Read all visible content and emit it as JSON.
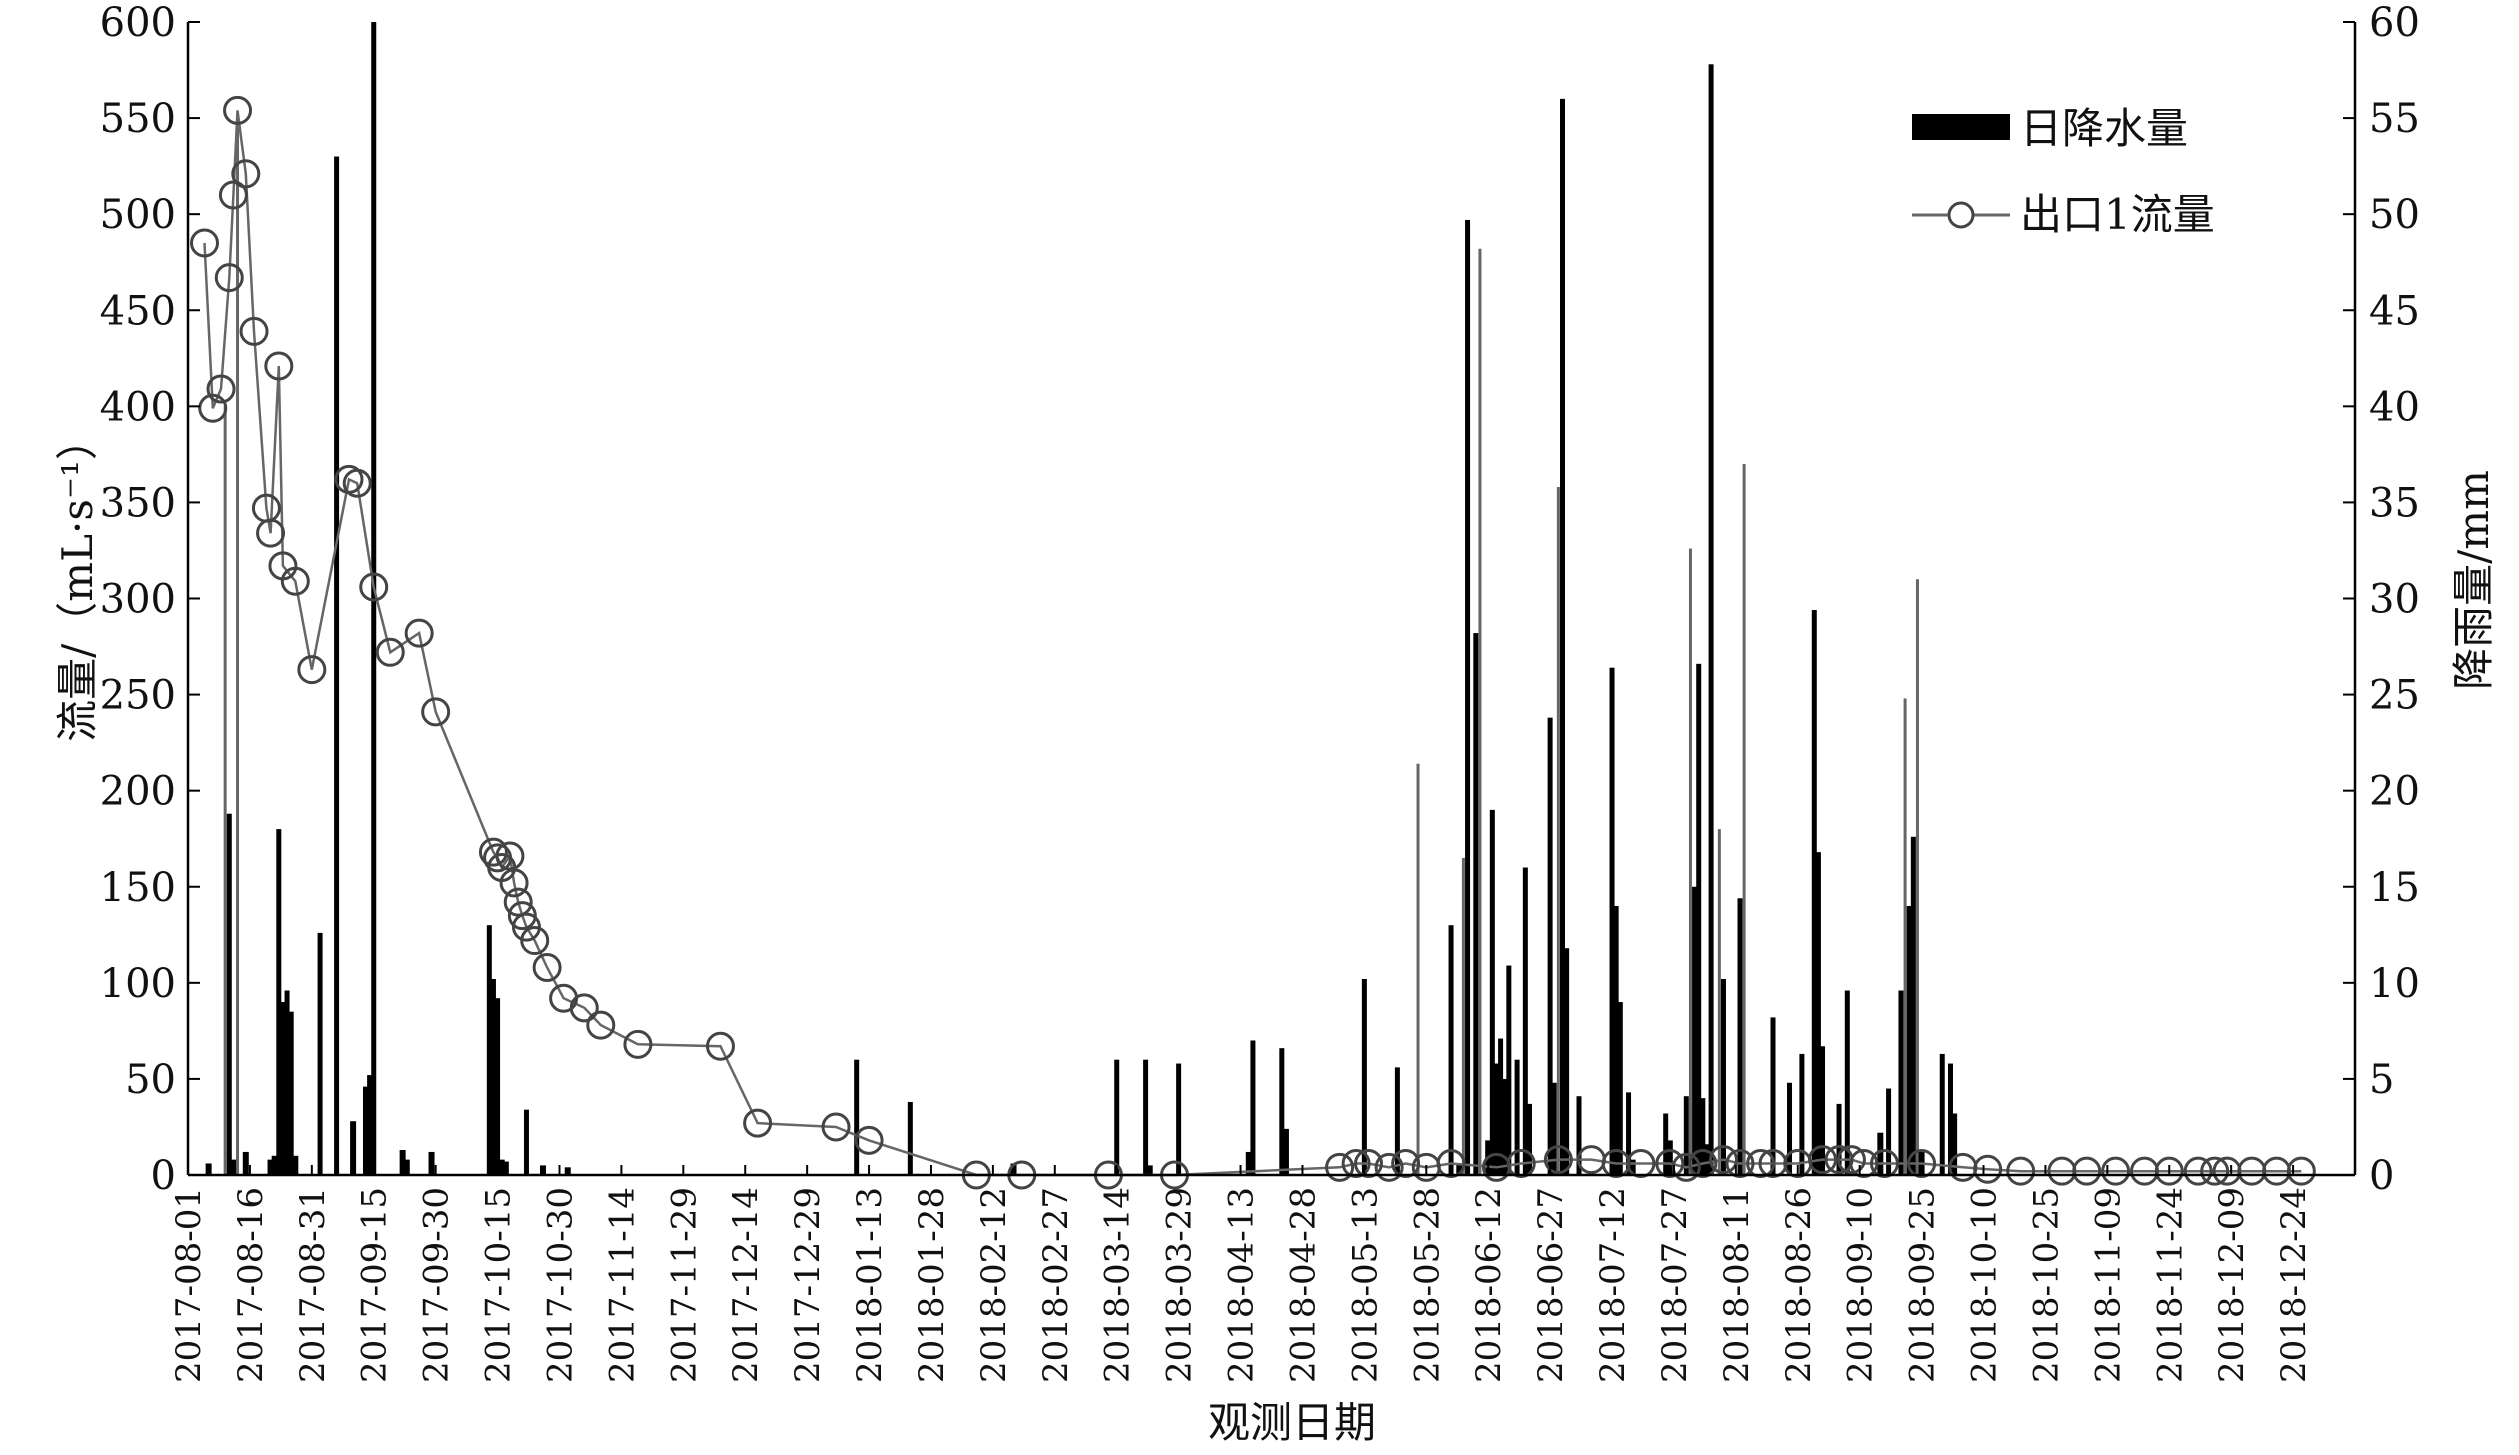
{
  "chart_data": {
    "type": "bar+line",
    "xlabel": "观测日期",
    "ylabel_left": "流量/（mL·s⁻¹）",
    "ylabel_right": "降雨量/mm",
    "ylim_left": [
      0,
      600
    ],
    "ylim_right": [
      0,
      60
    ],
    "yticks_left": [
      "0",
      "50",
      "100",
      "150",
      "200",
      "250",
      "300",
      "350",
      "400",
      "450",
      "500",
      "550",
      "600"
    ],
    "yticks_right": [
      "0",
      "5",
      "10",
      "15",
      "20",
      "25",
      "30",
      "35",
      "40",
      "45",
      "50",
      "55",
      "60"
    ],
    "x_ticks": [
      "2017-08-01",
      "2017-08-16",
      "2017-08-31",
      "2017-09-15",
      "2017-09-30",
      "2017-10-15",
      "2017-10-30",
      "2017-11-14",
      "2017-11-29",
      "2017-12-14",
      "2017-12-29",
      "2018-01-13",
      "2018-01-28",
      "2018-02-12",
      "2018-02-27",
      "2018-03-14",
      "2018-03-29",
      "2018-04-13",
      "2018-04-28",
      "2018-05-13",
      "2018-05-28",
      "2018-06-12",
      "2018-06-27",
      "2018-07-12",
      "2018-07-27",
      "2018-08-11",
      "2018-08-26",
      "2018-09-10",
      "2018-09-25",
      "2018-10-10",
      "2018-10-25",
      "2018-11-09",
      "2018-11-24",
      "2018-12-09",
      "2018-12-24"
    ],
    "legend_position": "top-right",
    "grid": false,
    "legend": {
      "rain": "日降水量",
      "flow": "出口1流量"
    },
    "colors": {
      "rain": "#000000",
      "rain_light": "#666666",
      "flow_line": "#666666",
      "flow_marker": "#444444"
    },
    "series": [
      {
        "name": "日降水量",
        "type": "bar",
        "axis": "right",
        "points": [
          [
            5,
            0.6
          ],
          [
            9,
            40
          ],
          [
            10,
            18.8
          ],
          [
            11,
            0.8
          ],
          [
            12,
            55
          ],
          [
            14,
            1.2
          ],
          [
            20,
            0.8
          ],
          [
            21,
            1.0
          ],
          [
            22,
            18
          ],
          [
            23,
            9
          ],
          [
            24,
            9.6
          ],
          [
            25,
            8.5
          ],
          [
            26,
            1.0
          ],
          [
            32,
            12.6
          ],
          [
            36,
            53
          ],
          [
            40,
            2.8
          ],
          [
            43,
            4.6
          ],
          [
            44,
            5.2
          ],
          [
            45,
            60
          ],
          [
            52,
            1.3
          ],
          [
            53,
            0.8
          ],
          [
            59,
            1.2
          ],
          [
            73,
            13
          ],
          [
            74,
            10.2
          ],
          [
            75,
            9.2
          ],
          [
            76,
            0.8
          ],
          [
            77,
            0.7
          ],
          [
            82,
            3.4
          ],
          [
            86,
            0.5
          ],
          [
            92,
            0.4
          ],
          [
            162,
            6.0
          ],
          [
            175,
            3.8
          ],
          [
            200,
            0.6
          ],
          [
            225,
            6.0
          ],
          [
            232,
            6.0
          ],
          [
            233,
            0.5
          ],
          [
            240,
            5.8
          ],
          [
            257,
            1.2
          ],
          [
            258,
            7.0
          ],
          [
            265,
            6.6
          ],
          [
            266,
            2.4
          ],
          [
            285,
            10.2
          ],
          [
            293,
            5.6
          ],
          [
            298,
            21.4
          ],
          [
            306,
            13
          ],
          [
            308,
            0.6
          ],
          [
            309,
            16.5
          ],
          [
            310,
            49.7
          ],
          [
            312,
            28.2
          ],
          [
            313,
            48.2
          ],
          [
            315,
            1.8
          ],
          [
            316,
            19
          ],
          [
            317,
            5.8
          ],
          [
            318,
            7.1
          ],
          [
            319,
            5
          ],
          [
            320,
            10.9
          ],
          [
            322,
            6
          ],
          [
            324,
            16
          ],
          [
            325,
            3.7
          ],
          [
            330,
            23.8
          ],
          [
            331,
            4.8
          ],
          [
            332,
            35.8
          ],
          [
            333,
            56
          ],
          [
            334,
            11.8
          ],
          [
            337,
            4.1
          ],
          [
            345,
            26.4
          ],
          [
            346,
            14
          ],
          [
            347,
            9
          ],
          [
            349,
            4.3
          ],
          [
            350,
            0.8
          ],
          [
            358,
            3.2
          ],
          [
            359,
            1.8
          ],
          [
            363,
            4.1
          ],
          [
            364,
            32.6
          ],
          [
            365,
            15
          ],
          [
            366,
            26.6
          ],
          [
            367,
            4
          ],
          [
            368,
            1.6
          ],
          [
            369,
            57.8
          ],
          [
            371,
            18
          ],
          [
            372,
            10.2
          ],
          [
            376,
            14.4
          ],
          [
            377,
            37
          ],
          [
            384,
            8.2
          ],
          [
            388,
            4.8
          ],
          [
            391,
            6.3
          ],
          [
            394,
            29.4
          ],
          [
            395,
            16.8
          ],
          [
            396,
            6.7
          ],
          [
            400,
            3.7
          ],
          [
            402,
            9.6
          ],
          [
            410,
            2.2
          ],
          [
            412,
            4.5
          ],
          [
            415,
            9.6
          ],
          [
            416,
            24.8
          ],
          [
            417,
            14
          ],
          [
            418,
            17.6
          ],
          [
            419,
            31
          ],
          [
            420,
            1.2
          ],
          [
            425,
            6.3
          ],
          [
            427,
            5.8
          ],
          [
            428,
            3.2
          ]
        ]
      },
      {
        "name": "出口1流量",
        "type": "line",
        "axis": "left",
        "points": [
          [
            4,
            485
          ],
          [
            6,
            399
          ],
          [
            8,
            409
          ],
          [
            10,
            467
          ],
          [
            11,
            510
          ],
          [
            12,
            554
          ],
          [
            14,
            521
          ],
          [
            16,
            439
          ],
          [
            19,
            347
          ],
          [
            20,
            334
          ],
          [
            22,
            421
          ],
          [
            23,
            317
          ],
          [
            26,
            309
          ],
          [
            30,
            263
          ],
          [
            39,
            362
          ],
          [
            41,
            360
          ],
          [
            45,
            306
          ],
          [
            49,
            272
          ],
          [
            56,
            282
          ],
          [
            60,
            241
          ],
          [
            74,
            168
          ],
          [
            75,
            165
          ],
          [
            76,
            160
          ],
          [
            78,
            166
          ],
          [
            79,
            152
          ],
          [
            80,
            142
          ],
          [
            81,
            135
          ],
          [
            82,
            129
          ],
          [
            84,
            122
          ],
          [
            87,
            108
          ],
          [
            91,
            92
          ],
          [
            96,
            87
          ],
          [
            100,
            78
          ],
          [
            109,
            68
          ],
          [
            129,
            67
          ],
          [
            138,
            27
          ],
          [
            157,
            25
          ],
          [
            165,
            18
          ],
          [
            191,
            0
          ],
          [
            202,
            0
          ],
          [
            223,
            0
          ],
          [
            239,
            0
          ],
          [
            279,
            4
          ],
          [
            283,
            6
          ],
          [
            286,
            6
          ],
          [
            291,
            4
          ],
          [
            295,
            6
          ],
          [
            300,
            4
          ],
          [
            306,
            6
          ],
          [
            317,
            4
          ],
          [
            323,
            6
          ],
          [
            332,
            8
          ],
          [
            340,
            8
          ],
          [
            346,
            6
          ],
          [
            352,
            6
          ],
          [
            359,
            6
          ],
          [
            363,
            4
          ],
          [
            367,
            6
          ],
          [
            372,
            8
          ],
          [
            376,
            6
          ],
          [
            381,
            6
          ],
          [
            384,
            6
          ],
          [
            390,
            6
          ],
          [
            396,
            8
          ],
          [
            400,
            8
          ],
          [
            403,
            8
          ],
          [
            406,
            6
          ],
          [
            411,
            6
          ],
          [
            420,
            6
          ],
          [
            430,
            4
          ],
          [
            436,
            3
          ],
          [
            444,
            2
          ],
          [
            454,
            2
          ],
          [
            460,
            2
          ],
          [
            467,
            2
          ],
          [
            474,
            2
          ],
          [
            480,
            2
          ],
          [
            487,
            2
          ],
          [
            491,
            2
          ],
          [
            494,
            2
          ],
          [
            500,
            2
          ],
          [
            506,
            2
          ],
          [
            512,
            2
          ]
        ]
      }
    ]
  }
}
